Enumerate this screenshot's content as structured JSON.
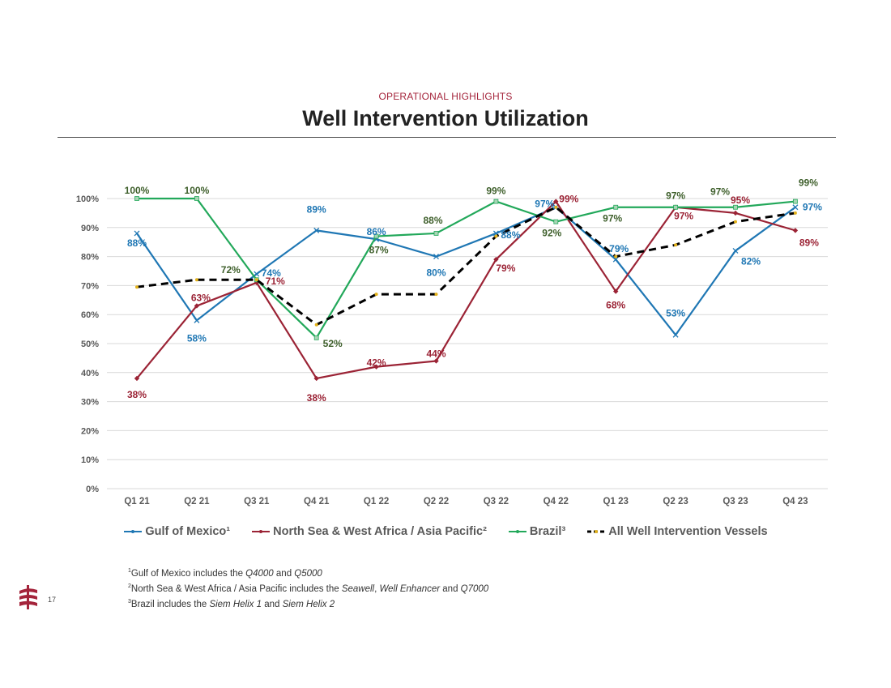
{
  "header": {
    "kicker": "OPERATIONAL HIGHLIGHTS",
    "title": "Well Intervention Utilization"
  },
  "chart_data": {
    "type": "line",
    "categories": [
      "Q1 21",
      "Q2 21",
      "Q3 21",
      "Q4 21",
      "Q1 22",
      "Q2 22",
      "Q3 22",
      "Q4 22",
      "Q1 23",
      "Q2 23",
      "Q3 23",
      "Q4 23"
    ],
    "ylim": [
      0,
      100
    ],
    "yticks": [
      "0%",
      "10%",
      "20%",
      "30%",
      "40%",
      "50%",
      "60%",
      "70%",
      "80%",
      "90%",
      "100%"
    ],
    "grid": true,
    "legend_position": "bottom",
    "series": [
      {
        "name": "Gulf of Mexico¹",
        "color": "#1F77B4",
        "dashed": false,
        "values": [
          88,
          58,
          74,
          89,
          86,
          80,
          88,
          97,
          79,
          53,
          82,
          97
        ],
        "labels": [
          "88%",
          "58%",
          "74%",
          "89%",
          "86%",
          "80%",
          "88%",
          "97%",
          "79%",
          "53%",
          "82%",
          "97%"
        ]
      },
      {
        "name": "North Sea & West Africa / Asia Pacific²",
        "color": "#9B2335",
        "dashed": false,
        "values": [
          38,
          63,
          71,
          38,
          42,
          44,
          79,
          99,
          68,
          97,
          95,
          89
        ],
        "labels": [
          "38%",
          "63%",
          "71%",
          "38%",
          "42%",
          "44%",
          "79%",
          "99%",
          "68%",
          "97%",
          "95%",
          "89%"
        ]
      },
      {
        "name": "Brazil³",
        "color": "#22A85A",
        "label_color": "#3E5F2B",
        "dashed": false,
        "values": [
          100,
          100,
          72,
          52,
          87,
          88,
          99,
          92,
          97,
          97,
          97,
          99
        ],
        "labels": [
          "100%",
          "100%",
          "72%",
          "52%",
          "87%",
          "88%",
          "99%",
          "92%",
          "97%",
          "97%",
          "97%",
          "99%"
        ]
      },
      {
        "name": "All Well Intervention Vessels",
        "color": "#000000",
        "dashed": true,
        "values": [
          69.5,
          72,
          72,
          56.5,
          67,
          67,
          87,
          97,
          80,
          84,
          92,
          95
        ],
        "labels": []
      }
    ]
  },
  "footnotes": [
    {
      "sup": "1",
      "segments": [
        {
          "text": "Gulf of Mexico includes the ",
          "italic": false
        },
        {
          "text": "Q4000",
          "italic": true
        },
        {
          "text": " and ",
          "italic": false
        },
        {
          "text": "Q5000",
          "italic": true
        }
      ]
    },
    {
      "sup": "2",
      "segments": [
        {
          "text": "North Sea & West Africa / Asia Pacific includes the ",
          "italic": false
        },
        {
          "text": "Seawell",
          "italic": true
        },
        {
          "text": ", ",
          "italic": false
        },
        {
          "text": "Well Enhancer",
          "italic": true
        },
        {
          "text": " and ",
          "italic": false
        },
        {
          "text": "Q7000",
          "italic": true
        }
      ]
    },
    {
      "sup": "3",
      "segments": [
        {
          "text": "Brazil includes the ",
          "italic": false
        },
        {
          "text": "Siem Helix 1",
          "italic": true
        },
        {
          "text": " and ",
          "italic": false
        },
        {
          "text": "Siem Helix 2",
          "italic": true
        }
      ]
    }
  ],
  "page_number": "17",
  "colors": {
    "kicker": "#A4243B",
    "grid": "#D9D9D9",
    "axis_text": "#595959",
    "logo": "#A4243B"
  }
}
